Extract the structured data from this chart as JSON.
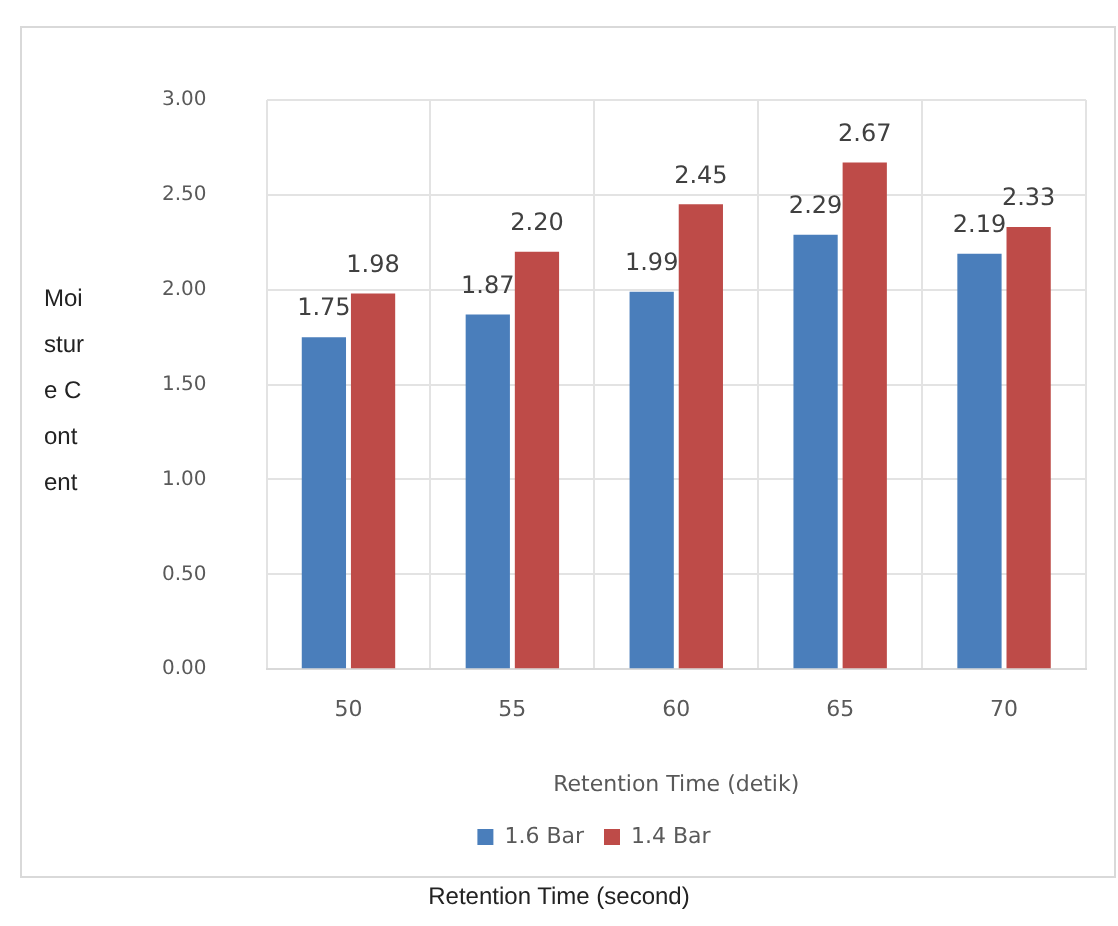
{
  "chart_data": {
    "type": "bar",
    "xlabel": "Retention Time (detik)",
    "ylabel": "Moisture Content",
    "categories": [
      "50",
      "55",
      "60",
      "65",
      "70"
    ],
    "series": [
      {
        "name": "1.6 Bar",
        "color": "#4a7ebb",
        "values": [
          1.75,
          1.87,
          1.99,
          2.29,
          2.19
        ],
        "value_labels": [
          "1.75",
          "1.87",
          "1.99",
          "2.29",
          "2.19"
        ]
      },
      {
        "name": "1.4 Bar",
        "color": "#be4b48",
        "values": [
          1.98,
          2.2,
          2.45,
          2.67,
          2.33
        ],
        "value_labels": [
          "1.98",
          "2.20",
          "2.45",
          "2.67",
          "2.33"
        ]
      }
    ],
    "ylim": [
      0,
      3
    ],
    "yticks": [
      {
        "value": 0,
        "label": "0.00"
      },
      {
        "value": 0.5,
        "label": "0.50"
      },
      {
        "value": 1,
        "label": "1.00"
      },
      {
        "value": 1.5,
        "label": "1.50"
      },
      {
        "value": 2,
        "label": "2.00"
      },
      {
        "value": 2.5,
        "label": "2.50"
      },
      {
        "value": 3,
        "label": "3.00"
      }
    ],
    "grid": true,
    "legend": "bottom",
    "annotations": [
      "Retention Time (second)"
    ]
  }
}
